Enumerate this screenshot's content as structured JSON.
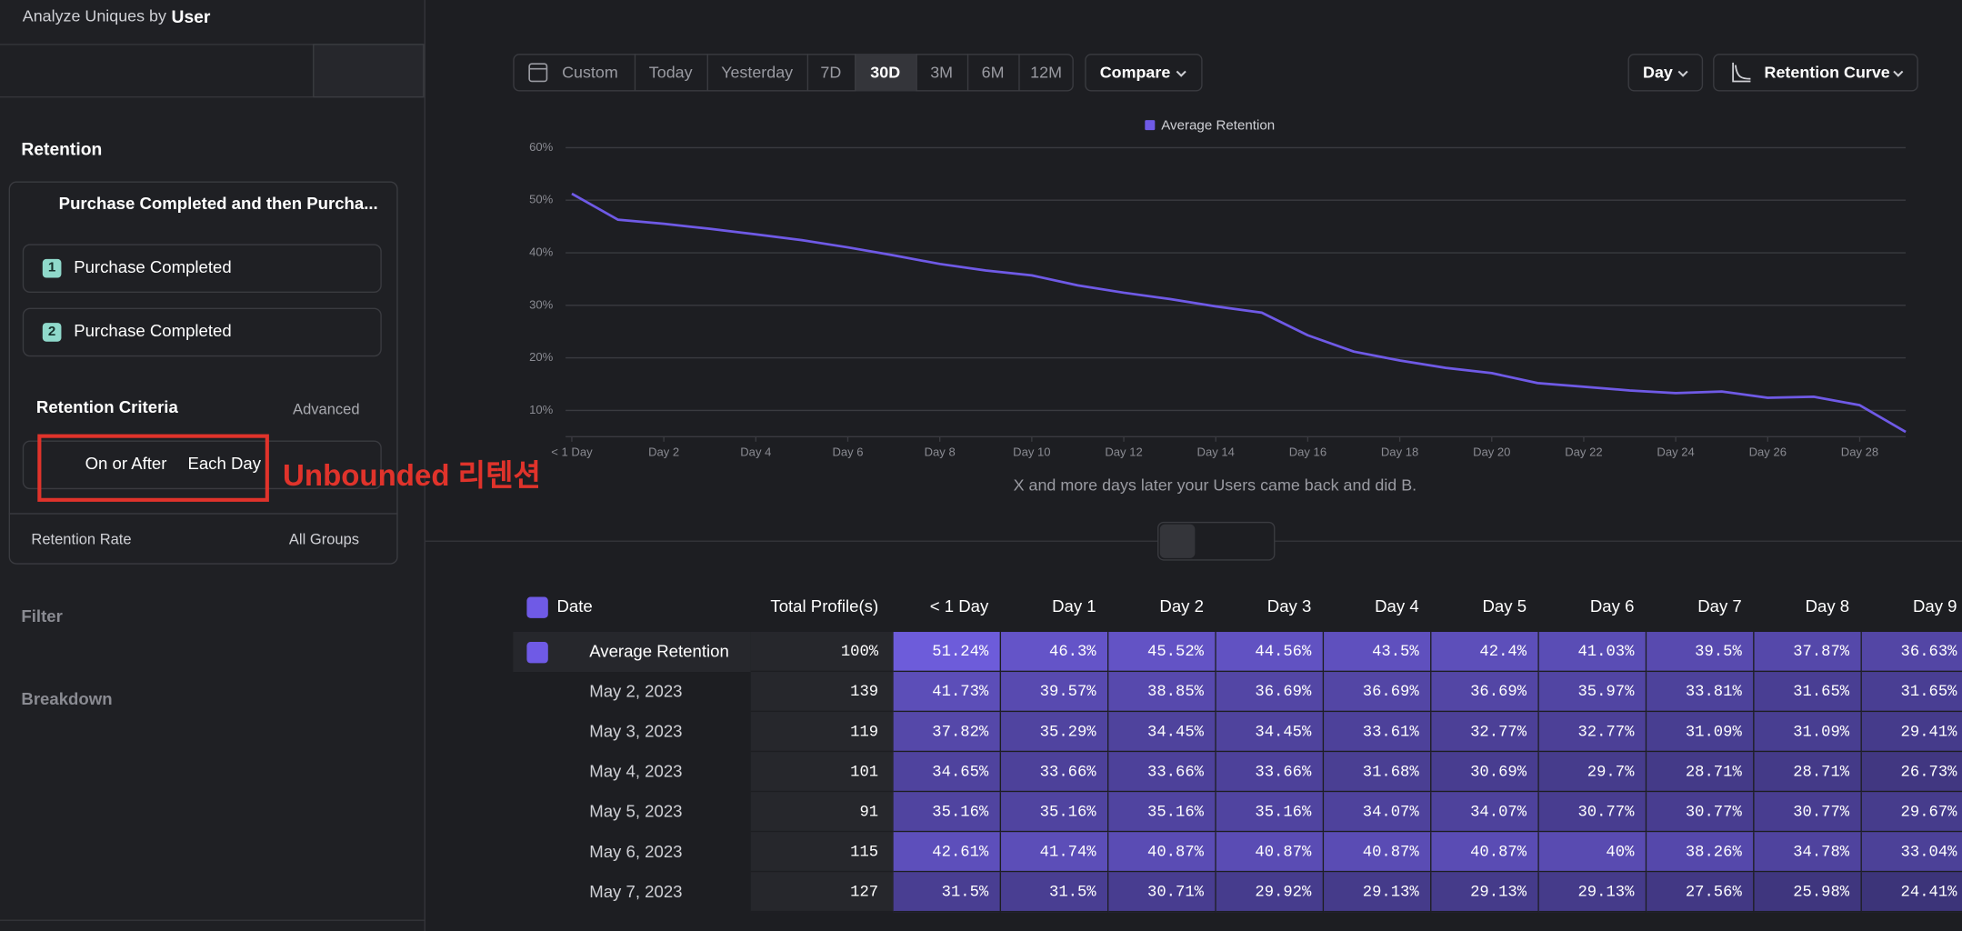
{
  "sidebar": {
    "analyze_label": "Analyze Uniques by",
    "analyze_value": "User",
    "section": "Retention",
    "event_group": "Purchase Completed and then Purcha...",
    "steps": [
      {
        "number": "1",
        "label": "Purchase Completed"
      },
      {
        "number": "2",
        "label": "Purchase Completed"
      }
    ],
    "criteria_title": "Retention Criteria",
    "advanced": "Advanced",
    "criteria": [
      "On or After",
      "Each Day"
    ],
    "rate": "Retention Rate",
    "groups": "All Groups",
    "filter": "Filter",
    "breakdown": "Breakdown"
  },
  "annotation": "Unbounded 리텐션",
  "toolbar": {
    "ranges": [
      "Custom",
      "Today",
      "Yesterday",
      "7D",
      "30D",
      "3M",
      "6M",
      "12M"
    ],
    "active_range": "30D",
    "compare": "Compare",
    "interval": "Day",
    "view": "Retention Curve"
  },
  "chart_data": {
    "type": "line",
    "series": [
      {
        "name": "Average Retention",
        "color": "#6f5ae6",
        "values": [
          51.24,
          46.3,
          45.52,
          44.56,
          43.5,
          42.4,
          41.03,
          39.5,
          37.87,
          36.63,
          35.7,
          33.8,
          32.4,
          31.2,
          29.8,
          28.6,
          24.3,
          21.2,
          19.5,
          18.1,
          17.1,
          15.2,
          14.5,
          13.8,
          13.3,
          13.6,
          12.4,
          12.6,
          11,
          5.9
        ]
      }
    ],
    "x": [
      0,
      1,
      2,
      3,
      4,
      5,
      6,
      7,
      8,
      9,
      10,
      11,
      12,
      13,
      14,
      15,
      16,
      17,
      18,
      19,
      20,
      21,
      22,
      23,
      24,
      25,
      26,
      27,
      28,
      29
    ],
    "xlim": [
      0,
      29
    ],
    "xticks": [
      {
        "value": 0,
        "label": "< 1 Day"
      },
      {
        "value": 2,
        "label": "Day 2"
      },
      {
        "value": 4,
        "label": "Day 4"
      },
      {
        "value": 6,
        "label": "Day 6"
      },
      {
        "value": 8,
        "label": "Day 8"
      },
      {
        "value": 10,
        "label": "Day 10"
      },
      {
        "value": 12,
        "label": "Day 12"
      },
      {
        "value": 14,
        "label": "Day 14"
      },
      {
        "value": 16,
        "label": "Day 16"
      },
      {
        "value": 18,
        "label": "Day 18"
      },
      {
        "value": 20,
        "label": "Day 20"
      },
      {
        "value": 22,
        "label": "Day 22"
      },
      {
        "value": 24,
        "label": "Day 24"
      },
      {
        "value": 26,
        "label": "Day 26"
      },
      {
        "value": 28,
        "label": "Day 28"
      }
    ],
    "ylim": [
      5,
      60
    ],
    "yticks": [
      {
        "value": 10,
        "label": "10%"
      },
      {
        "value": 20,
        "label": "20%"
      },
      {
        "value": 30,
        "label": "30%"
      },
      {
        "value": 40,
        "label": "40%"
      },
      {
        "value": 50,
        "label": "50%"
      },
      {
        "value": 60,
        "label": "60%"
      }
    ],
    "grid": true,
    "xlabel": "X and more days later your Users came back and did B."
  },
  "table": {
    "columns": [
      "Date",
      "Total Profile(s)",
      "< 1 Day",
      "Day 1",
      "Day 2",
      "Day 3",
      "Day 4",
      "Day 5",
      "Day 6",
      "Day 7",
      "Day 8",
      "Day 9"
    ],
    "rows": [
      [
        "Average Retention",
        "100%",
        "51.24%",
        "46.3%",
        "45.52%",
        "44.56%",
        "43.5%",
        "42.4%",
        "41.03%",
        "39.5%",
        "37.87%",
        "36.63%"
      ],
      [
        "May 2, 2023",
        "139",
        "41.73%",
        "39.57%",
        "38.85%",
        "36.69%",
        "36.69%",
        "36.69%",
        "35.97%",
        "33.81%",
        "31.65%",
        "31.65%"
      ],
      [
        "May 3, 2023",
        "119",
        "37.82%",
        "35.29%",
        "34.45%",
        "34.45%",
        "33.61%",
        "32.77%",
        "32.77%",
        "31.09%",
        "31.09%",
        "29.41%"
      ],
      [
        "May 4, 2023",
        "101",
        "34.65%",
        "33.66%",
        "33.66%",
        "33.66%",
        "31.68%",
        "30.69%",
        "29.7%",
        "28.71%",
        "28.71%",
        "26.73%"
      ],
      [
        "May 5, 2023",
        "91",
        "35.16%",
        "35.16%",
        "35.16%",
        "35.16%",
        "34.07%",
        "34.07%",
        "30.77%",
        "30.77%",
        "30.77%",
        "29.67%"
      ],
      [
        "May 6, 2023",
        "115",
        "42.61%",
        "41.74%",
        "40.87%",
        "40.87%",
        "40.87%",
        "40.87%",
        "40%",
        "38.26%",
        "34.78%",
        "33.04%"
      ],
      [
        "May 7, 2023",
        "127",
        "31.5%",
        "31.5%",
        "30.71%",
        "29.92%",
        "29.13%",
        "29.13%",
        "29.13%",
        "27.56%",
        "25.98%",
        "24.41%"
      ]
    ]
  }
}
